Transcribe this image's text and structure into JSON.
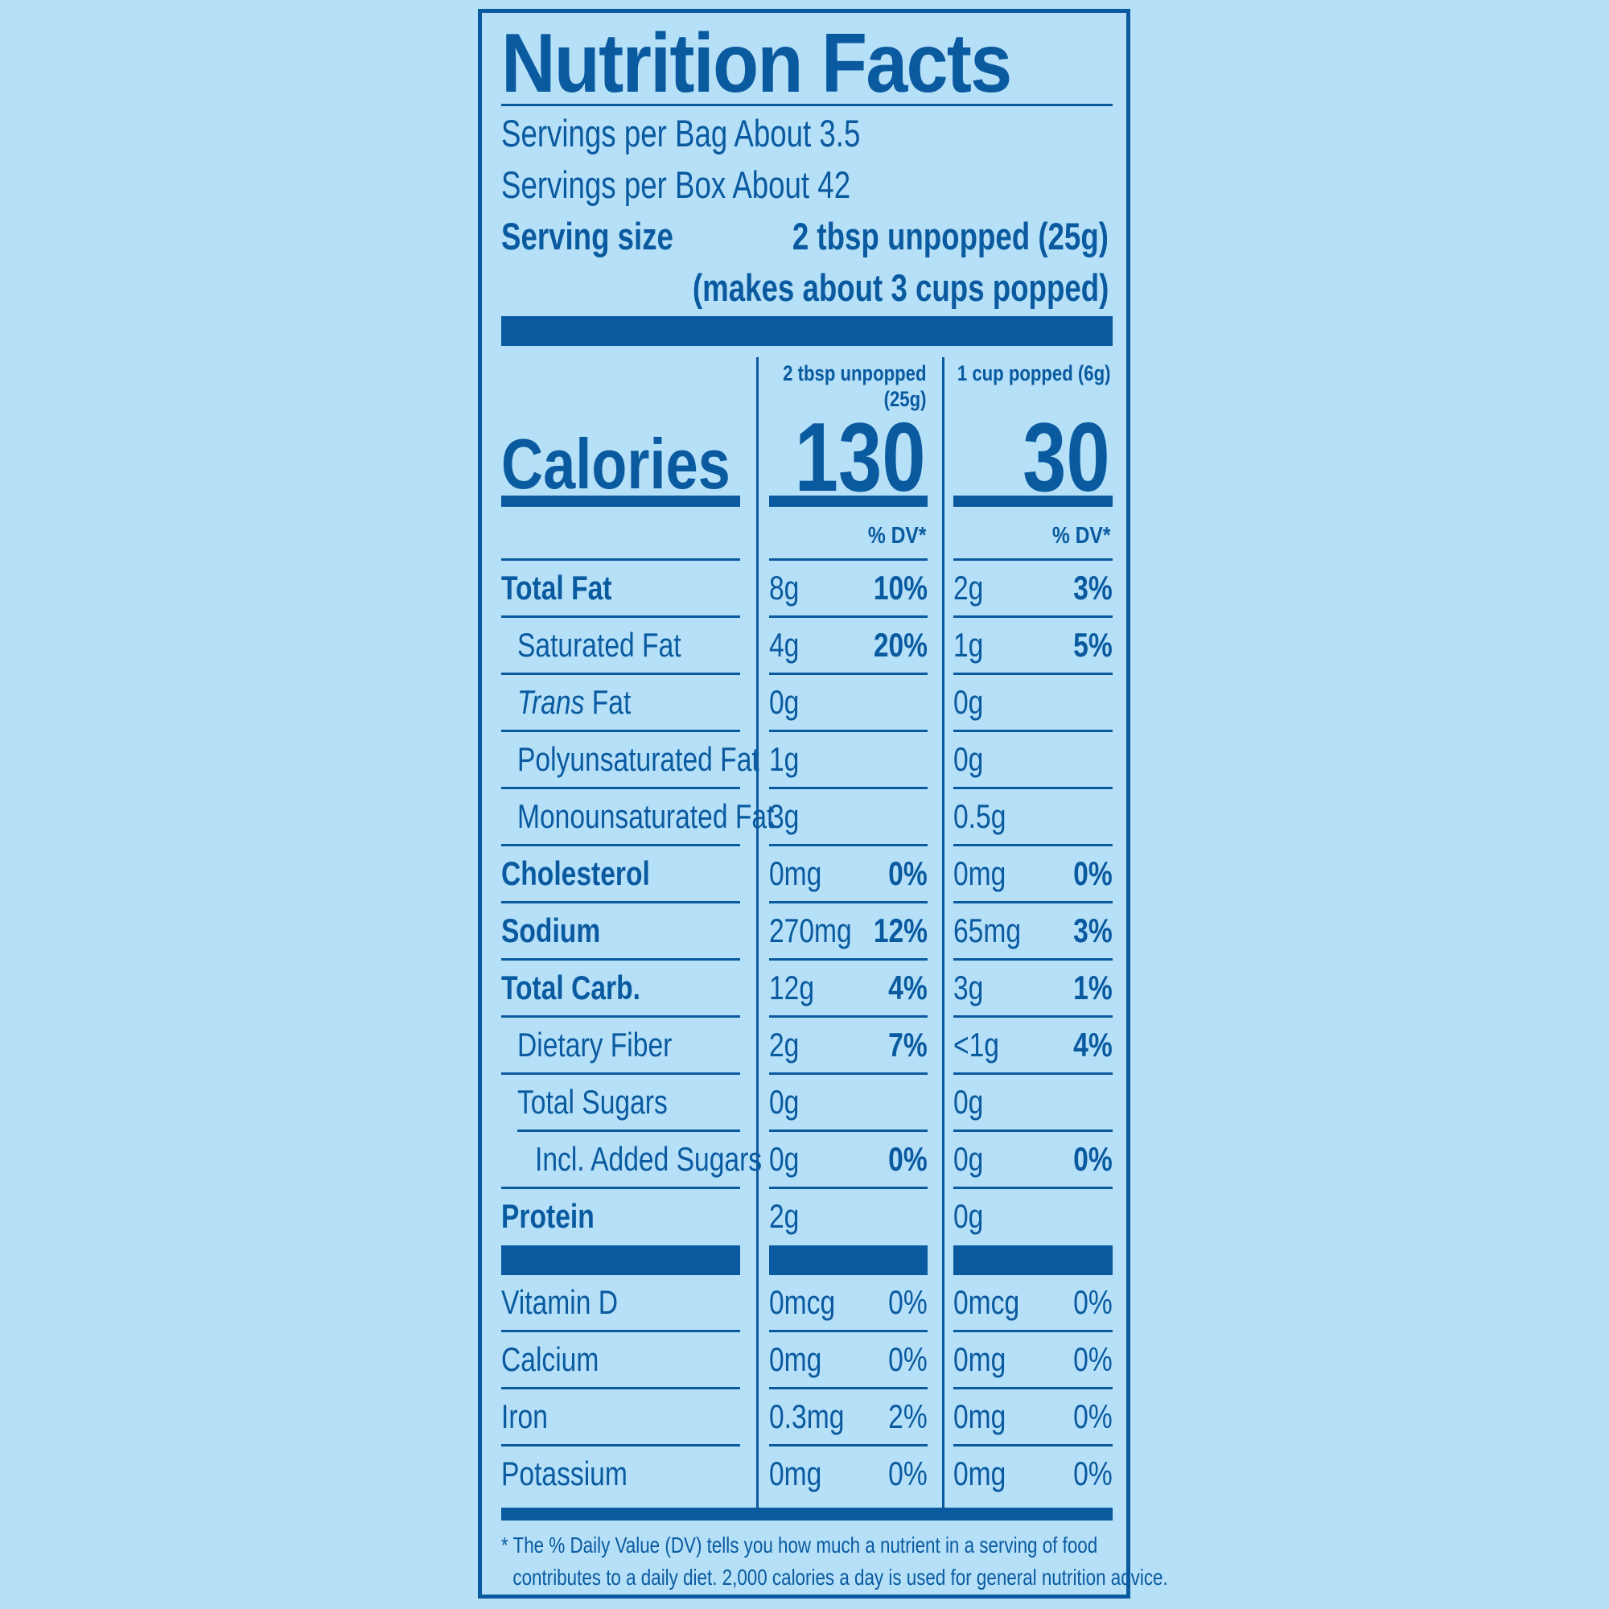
{
  "title": "Nutrition Facts",
  "servings_bag": "Servings per Bag About 3.5",
  "servings_box": "Servings per Box About 42",
  "serving_size_label": "Serving size",
  "serving_size_value": "2 tbsp unpopped (25g)",
  "serving_size_note": "(makes about 3 cups popped)",
  "columns": {
    "col1_head_line1": "2 tbsp unpopped",
    "col1_head_line2": "(25g)",
    "col2_head": "1 cup popped (6g)"
  },
  "calories": {
    "label": "Calories",
    "col1": "130",
    "col2": "30"
  },
  "dv_header": "% DV*",
  "nutrients": [
    {
      "name": "Total Fat",
      "amt1": "8g",
      "dv1": "10%",
      "amt2": "2g",
      "dv2": "3%"
    },
    {
      "name": "Saturated Fat",
      "amt1": "4g",
      "dv1": "20%",
      "amt2": "1g",
      "dv2": "5%"
    },
    {
      "name_italic": "Trans",
      "name_rest": " Fat",
      "amt1": "0g",
      "dv1": "",
      "amt2": "0g",
      "dv2": ""
    },
    {
      "name": "Polyunsaturated Fat",
      "amt1": "1g",
      "dv1": "",
      "amt2": "0g",
      "dv2": ""
    },
    {
      "name": "Monounsaturated Fat",
      "amt1": "3g",
      "dv1": "",
      "amt2": "0.5g",
      "dv2": ""
    },
    {
      "name": "Cholesterol",
      "amt1": "0mg",
      "dv1": "0%",
      "amt2": "0mg",
      "dv2": "0%"
    },
    {
      "name": "Sodium",
      "amt1": "270mg",
      "dv1": "12%",
      "amt2": "65mg",
      "dv2": "3%"
    },
    {
      "name": "Total Carb.",
      "amt1": "12g",
      "dv1": "4%",
      "amt2": "3g",
      "dv2": "1%"
    },
    {
      "name": "Dietary Fiber",
      "amt1": "2g",
      "dv1": "7%",
      "amt2": "<1g",
      "dv2": "4%"
    },
    {
      "name": "Total Sugars",
      "amt1": "0g",
      "dv1": "",
      "amt2": "0g",
      "dv2": ""
    },
    {
      "name": "Incl. Added Sugars",
      "amt1": "0g",
      "dv1": "0%",
      "amt2": "0g",
      "dv2": "0%"
    },
    {
      "name": "Protein",
      "amt1": "2g",
      "dv1": "",
      "amt2": "0g",
      "dv2": ""
    }
  ],
  "vitamins": [
    {
      "name": "Vitamin D",
      "amt1": "0mcg",
      "dv1": "0%",
      "amt2": "0mcg",
      "dv2": "0%"
    },
    {
      "name": "Calcium",
      "amt1": "0mg",
      "dv1": "0%",
      "amt2": "0mg",
      "dv2": "0%"
    },
    {
      "name": "Iron",
      "amt1": "0.3mg",
      "dv1": "2%",
      "amt2": "0mg",
      "dv2": "0%"
    },
    {
      "name": "Potassium",
      "amt1": "0mg",
      "dv1": "0%",
      "amt2": "0mg",
      "dv2": "0%"
    }
  ],
  "footnote_line1": "* The % Daily Value (DV) tells you how much a nutrient in a serving of food",
  "footnote_line2": "contributes to a daily diet. 2,000 calories a day is used for general nutrition advice."
}
